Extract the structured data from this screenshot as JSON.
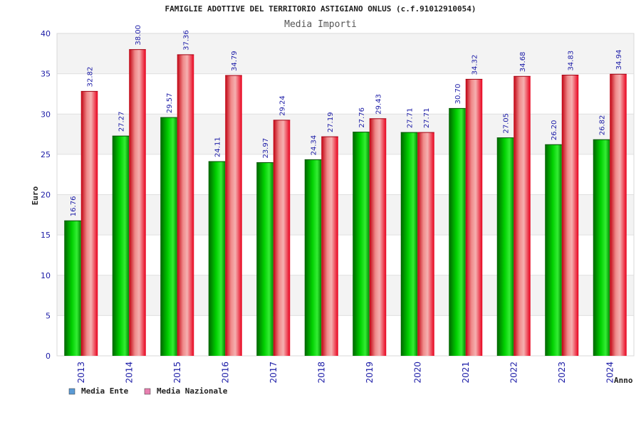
{
  "chart_data": {
    "type": "bar",
    "title": "FAMIGLIE ADOTTIVE DEL TERRITORIO ASTIGIANO ONLUS (c.f.91012910054)",
    "subtitle": "Media Importi",
    "xlabel": "Anno",
    "ylabel": "Euro",
    "ylim": [
      0,
      40
    ],
    "yticks": [
      0,
      5,
      10,
      15,
      20,
      25,
      30,
      35,
      40
    ],
    "categories": [
      "2013",
      "2014",
      "2015",
      "2016",
      "2017",
      "2018",
      "2019",
      "2020",
      "2021",
      "2022",
      "2023",
      "2024"
    ],
    "series": [
      {
        "name": "Media Ente",
        "color": "#00b400",
        "legend_color": "#5b9bd5",
        "values": [
          16.76,
          27.27,
          29.57,
          24.11,
          23.97,
          24.34,
          27.76,
          27.71,
          30.7,
          27.05,
          26.2,
          26.82
        ]
      },
      {
        "name": "Media Nazionale",
        "color": "#e8001c",
        "legend_color": "#e87fb0",
        "values": [
          32.82,
          38.0,
          37.36,
          34.79,
          29.24,
          27.19,
          29.43,
          27.71,
          34.32,
          34.68,
          34.83,
          34.94
        ]
      }
    ],
    "grid": true,
    "legend": "bottom-left"
  }
}
